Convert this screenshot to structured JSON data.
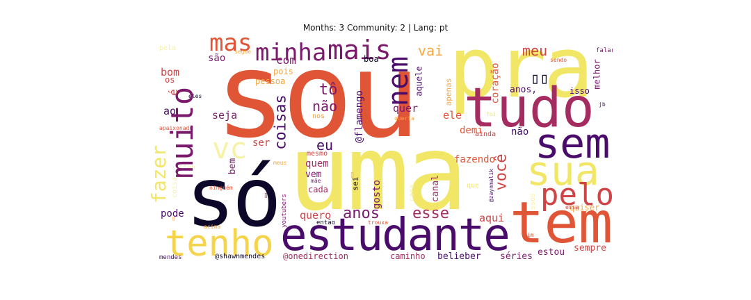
{
  "title": "Months: 3 Community: 2 | Lang: pt",
  "colors": {
    "black": "#0d0829",
    "deep_purple": "#4a0c6b",
    "purple": "#7b1a6c",
    "magenta": "#a52c60",
    "red_pink": "#cf4446",
    "red_orange": "#e05536",
    "orange": "#f2842c",
    "light_orange": "#f8a53d",
    "yellow": "#f2e666",
    "pale_yellow": "#f6f2a6"
  },
  "words": {
    "sou": "sou",
    "uma": "uma",
    "pra": "pra",
    "so": "só",
    "tudo": "tudo",
    "tem": "tem",
    "estudante": "estudante",
    "sem": "sem",
    "sua": "sua",
    "muito": "muito",
    "vc": "vc",
    "tenho": "tenho",
    "pelo": "pelo",
    "mais": "mais",
    "minha": "minha",
    "mas": "mas",
    "nem": "nem",
    "fazer": "fazer",
    "coisas": "coisas",
    "voce": "você",
    "anos": "anos",
    "esse": "esse",
    "meu": "meu",
    "vai": "vai",
    "to": "tô",
    "nao1": "não",
    "eu": "eu",
    "flamengo": "@flamengo",
    "com": "com",
    "sao": "são",
    "bom": "bom",
    "os": "os",
    "e": "é",
    "ao": "ao",
    "seja": "seja",
    "quer": "quer",
    "ele": "ele",
    "demi": "demi",
    "nao2": "não",
    "coracao": "coração",
    "aquele": "aquele",
    "boa": "boa",
    "pois": "pois",
    "pessoa": "pessoa",
    "apenas": "apenas",
    "anos_comma": "anos,",
    "isso": "isso",
    "melhor": "melhor",
    "ser": "ser",
    "quem": "quem",
    "vem": "vem",
    "bem": "bem",
    "fazendo": "fazendo",
    "gosto": "gosto",
    "canal": "canal",
    "quero": "quero",
    "aqui": "aqui",
    "estou": "estou",
    "sempre": "sempre",
    "quiser": "quiser",
    "pode": "pode",
    "cada": "cada",
    "sei": "sei",
    "caminho": "caminho",
    "belieber": "belieber",
    "series": "séries",
    "onedirection": "@onedirection",
    "shawnmendes": "@shawnmendes",
    "mendes": "mendes",
    "pela": "pela",
    "segue": "segue",
    "falar": "falar",
    "sendo": "sendo",
    "eles": "eles",
    "nos": "nos",
    "queria": "queria",
    "foi": "foi",
    "ainda": "ainda",
    "jb": "jb",
    "apaixonado": "apaixonado",
    "mesmo": "mesmo",
    "meus": "meus",
    "mae": "mãe",
    "stan": "stan",
    "coisa": "coisa",
    "ninguem": "ninguém",
    "youtubers": "youtubers",
    "cara": "cara",
    "que": "que",
    "zaynmalik": "@zaynmalik",
    "ssos": "ssos",
    "essa": "essa",
    "acima": "acima",
    "entao": "então",
    "trouxa": "trouxa",
    "mim": "mim",
    "boxes": "▯▯",
    "box_small1": "▯",
    "box_small2": "▯",
    "box_small3": "▯"
  }
}
